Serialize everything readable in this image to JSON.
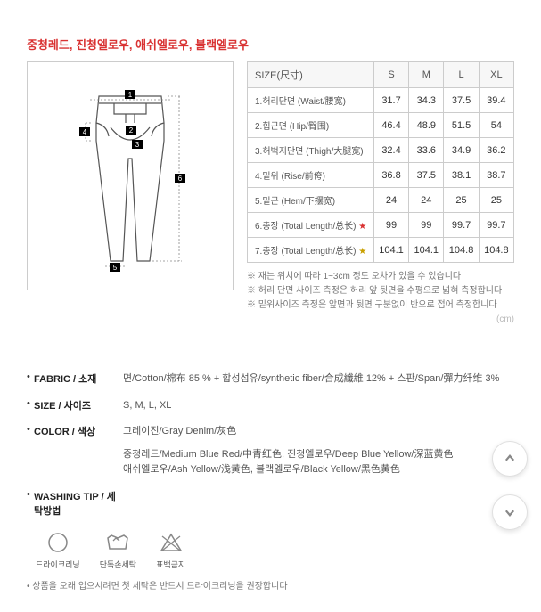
{
  "colorTitle": "중청레드, 진청엘로우, 애쉬엘로우, 블랙엘로우",
  "diagram": {
    "numbers": [
      "1",
      "2",
      "3",
      "4",
      "5",
      "6"
    ],
    "boxBg": "#000",
    "boxText": "#fff",
    "lineColor": "#666",
    "pantsStroke": "#444"
  },
  "sizeTable": {
    "header": [
      "SIZE(尺寸)",
      "S",
      "M",
      "L",
      "XL"
    ],
    "rows": [
      {
        "label": "1.허리단면 (Waist/腰宽)",
        "vals": [
          "31.7",
          "34.3",
          "37.5",
          "39.4"
        ]
      },
      {
        "label": "2.힙근면 (Hip/臀围)",
        "vals": [
          "46.4",
          "48.9",
          "51.5",
          "54"
        ]
      },
      {
        "label": "3.허벅지단면 (Thigh/大腿宽)",
        "vals": [
          "32.4",
          "33.6",
          "34.9",
          "36.2"
        ]
      },
      {
        "label": "4.밑위 (Rise/前侉)",
        "vals": [
          "36.8",
          "37.5",
          "38.1",
          "38.7"
        ]
      },
      {
        "label": "5.밑근 (Hem/下摆宽)",
        "vals": [
          "24",
          "24",
          "25",
          "25"
        ]
      },
      {
        "label": "6.총장 (Total Length/总长) ",
        "star": "red",
        "vals": [
          "99",
          "99",
          "99.7",
          "99.7"
        ]
      },
      {
        "label": "7.총장 (Total Length/总长) ",
        "star": "gold",
        "vals": [
          "104.1",
          "104.1",
          "104.8",
          "104.8"
        ]
      }
    ],
    "notes": [
      "※ 재는 위치에 따라 1~3cm 정도 오차가 있을 수 있습니다",
      "※ 허리 단면 사이즈 측정은 허리 앞 뒷면을 수평으로 넓혀 측정합니다",
      "※ 밑위사이즈 측정은 앞면과 뒷면 구분없이 반으로 접어 측정합니다"
    ],
    "cmLabel": "(cm)"
  },
  "details": {
    "fabric": {
      "key": "FABRIC / 소재",
      "val": "면/Cotton/棉布 85 % + 합성섬유/synthetic fiber/合成纖維 12% + 스판/Span/彈力纤维 3%"
    },
    "size": {
      "key": "SIZE / 사이즈",
      "val": "S, M, L, XL"
    },
    "color": {
      "key": "COLOR / 색상",
      "val1": "그레이진/Gray Denim/灰色",
      "val2": "중청레드/Medium Blue Red/中青红色, 진청엘로우/Deep Blue Yellow/深蓝黄色\n애쉬엘로우/Ash Yellow/浅黄色, 블랙엘로우/Black Yellow/黑色黄色"
    },
    "washing": {
      "key": "WASHING TIP / 세탁방법",
      "val": ""
    }
  },
  "washIcons": [
    {
      "name": "dryclean-icon",
      "label": "드라이크리닝"
    },
    {
      "name": "handwash-icon",
      "label": "단독손세탁"
    },
    {
      "name": "nobleach-icon",
      "label": "표백금지"
    }
  ],
  "bottomNotes": [
    "• 상품을 오래 입으시려면 첫 세탁은 반드시 드라이크리닝을 권장합니다"
  ]
}
